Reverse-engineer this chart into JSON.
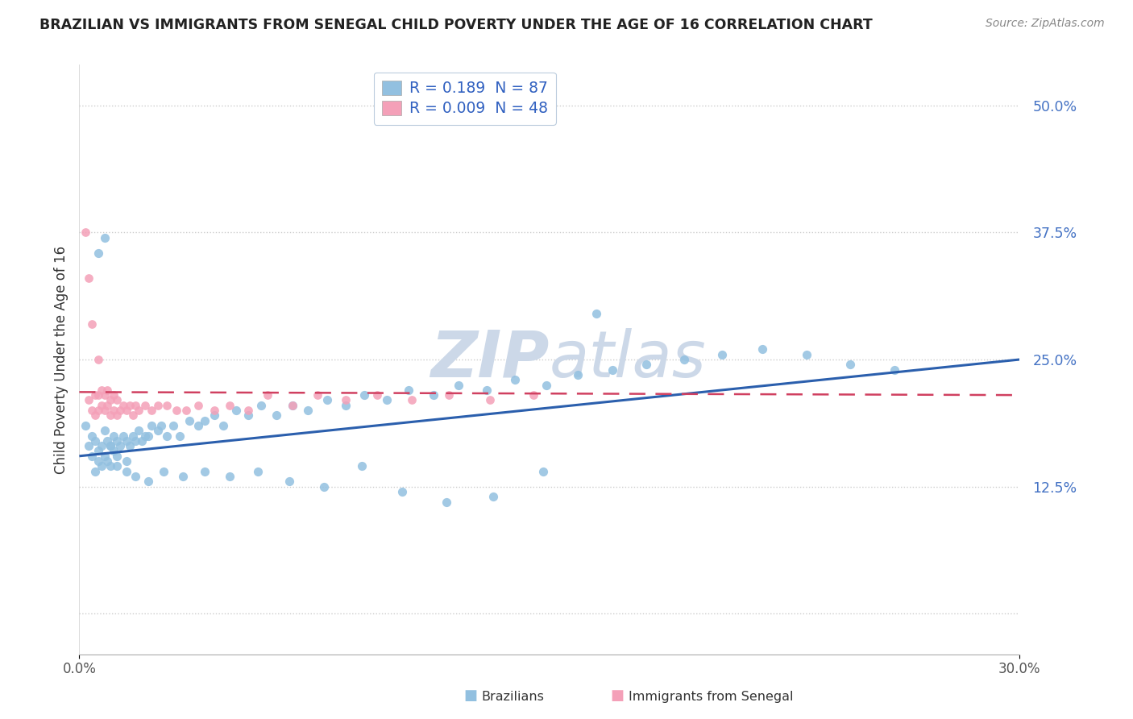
{
  "title": "BRAZILIAN VS IMMIGRANTS FROM SENEGAL CHILD POVERTY UNDER THE AGE OF 16 CORRELATION CHART",
  "source": "Source: ZipAtlas.com",
  "ylabel": "Child Poverty Under the Age of 16",
  "xlim": [
    0.0,
    0.3
  ],
  "ylim": [
    -0.04,
    0.54
  ],
  "ytick_vals": [
    0.0,
    0.125,
    0.25,
    0.375,
    0.5
  ],
  "ytick_labels": [
    "",
    "12.5%",
    "25.0%",
    "37.5%",
    "50.0%"
  ],
  "xtick_vals": [
    0.0,
    0.3
  ],
  "xtick_labels": [
    "0.0%",
    "30.0%"
  ],
  "r_brazilian": 0.189,
  "n_brazilian": 87,
  "r_senegal": 0.009,
  "n_senegal": 48,
  "blue_color": "#92c0e0",
  "pink_color": "#f4a0b8",
  "trend_blue": "#2b5fad",
  "trend_pink": "#d04060",
  "watermark_color": "#ccd8e8",
  "legend_label_blue": "Brazilians",
  "legend_label_pink": "Immigrants from Senegal",
  "ytick_color": "#4472c4",
  "legend_R_N_color": "#3060c0",
  "braz_x": [
    0.002,
    0.003,
    0.004,
    0.004,
    0.005,
    0.005,
    0.006,
    0.006,
    0.007,
    0.007,
    0.008,
    0.008,
    0.009,
    0.009,
    0.01,
    0.01,
    0.011,
    0.011,
    0.012,
    0.012,
    0.013,
    0.014,
    0.015,
    0.015,
    0.016,
    0.017,
    0.018,
    0.019,
    0.02,
    0.021,
    0.022,
    0.023,
    0.025,
    0.026,
    0.028,
    0.03,
    0.032,
    0.035,
    0.038,
    0.04,
    0.043,
    0.046,
    0.05,
    0.054,
    0.058,
    0.063,
    0.068,
    0.073,
    0.079,
    0.085,
    0.091,
    0.098,
    0.105,
    0.113,
    0.121,
    0.13,
    0.139,
    0.149,
    0.159,
    0.17,
    0.181,
    0.193,
    0.205,
    0.218,
    0.232,
    0.246,
    0.26,
    0.006,
    0.008,
    0.01,
    0.012,
    0.015,
    0.018,
    0.022,
    0.027,
    0.033,
    0.04,
    0.048,
    0.057,
    0.067,
    0.078,
    0.09,
    0.103,
    0.117,
    0.132,
    0.148,
    0.165
  ],
  "braz_y": [
    0.185,
    0.165,
    0.155,
    0.175,
    0.14,
    0.17,
    0.15,
    0.16,
    0.145,
    0.165,
    0.155,
    0.18,
    0.15,
    0.17,
    0.145,
    0.165,
    0.16,
    0.175,
    0.155,
    0.17,
    0.165,
    0.175,
    0.15,
    0.17,
    0.165,
    0.175,
    0.17,
    0.18,
    0.17,
    0.175,
    0.175,
    0.185,
    0.18,
    0.185,
    0.175,
    0.185,
    0.175,
    0.19,
    0.185,
    0.19,
    0.195,
    0.185,
    0.2,
    0.195,
    0.205,
    0.195,
    0.205,
    0.2,
    0.21,
    0.205,
    0.215,
    0.21,
    0.22,
    0.215,
    0.225,
    0.22,
    0.23,
    0.225,
    0.235,
    0.24,
    0.245,
    0.25,
    0.255,
    0.26,
    0.255,
    0.245,
    0.24,
    0.355,
    0.37,
    0.165,
    0.145,
    0.14,
    0.135,
    0.13,
    0.14,
    0.135,
    0.14,
    0.135,
    0.14,
    0.13,
    0.125,
    0.145,
    0.12,
    0.11,
    0.115,
    0.14,
    0.295
  ],
  "sen_x": [
    0.003,
    0.004,
    0.005,
    0.005,
    0.006,
    0.006,
    0.007,
    0.007,
    0.008,
    0.008,
    0.009,
    0.009,
    0.01,
    0.01,
    0.011,
    0.011,
    0.012,
    0.012,
    0.013,
    0.014,
    0.015,
    0.016,
    0.017,
    0.018,
    0.019,
    0.021,
    0.023,
    0.025,
    0.028,
    0.031,
    0.034,
    0.038,
    0.043,
    0.048,
    0.054,
    0.06,
    0.068,
    0.076,
    0.085,
    0.095,
    0.106,
    0.118,
    0.131,
    0.145,
    0.002,
    0.003,
    0.004,
    0.006
  ],
  "sen_y": [
    0.21,
    0.2,
    0.195,
    0.215,
    0.2,
    0.215,
    0.205,
    0.22,
    0.2,
    0.215,
    0.205,
    0.22,
    0.195,
    0.21,
    0.2,
    0.215,
    0.195,
    0.21,
    0.2,
    0.205,
    0.2,
    0.205,
    0.195,
    0.205,
    0.2,
    0.205,
    0.2,
    0.205,
    0.205,
    0.2,
    0.2,
    0.205,
    0.2,
    0.205,
    0.2,
    0.215,
    0.205,
    0.215,
    0.21,
    0.215,
    0.21,
    0.215,
    0.21,
    0.215,
    0.375,
    0.33,
    0.285,
    0.25
  ]
}
